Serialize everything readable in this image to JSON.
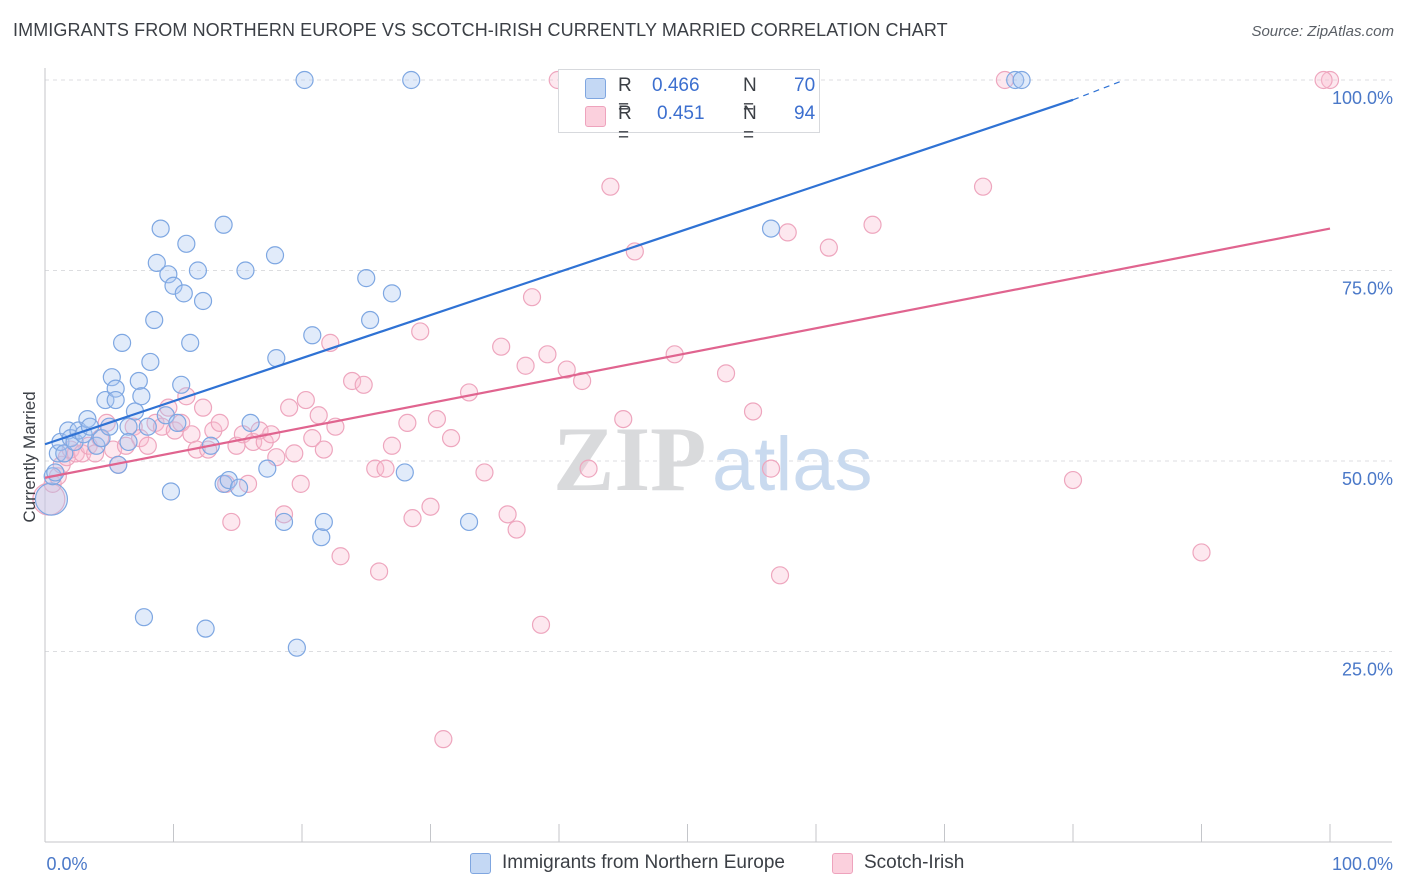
{
  "header": {
    "title": "IMMIGRANTS FROM NORTHERN EUROPE VS SCOTCH-IRISH CURRENTLY MARRIED CORRELATION CHART",
    "source": "Source: ZipAtlas.com"
  },
  "legend": {
    "r_prefix": "R =",
    "n_prefix": "N =",
    "series1": {
      "r": "0.466",
      "n": "70"
    },
    "series2": {
      "r": "0.451",
      "n": "94"
    }
  },
  "watermark": {
    "zip": "ZIP",
    "atlas": "atlas"
  },
  "chart_data": {
    "type": "scatter",
    "ylabel": "Currently Married",
    "xlim": [
      0,
      100
    ],
    "ylim": [
      0,
      100
    ],
    "x_tick_labels": [
      "0.0%",
      "100.0%"
    ],
    "y_ticks": [
      25,
      50,
      75,
      100
    ],
    "y_tick_labels": [
      "25.0%",
      "50.0%",
      "75.0%",
      "100.0%"
    ],
    "grid": "horizontal dashed",
    "legend_position": "top-center",
    "series": [
      {
        "name": "Immigrants from Northern Europe",
        "color": "#6f9fe0",
        "line_color": "#2f72d4",
        "regression": {
          "x0": 0,
          "y0": 52.2,
          "x1": 80,
          "y1": 97.4,
          "dash_to_x": 84,
          "dash_to_y": 100
        },
        "points": [
          [
            0.5,
            45
          ],
          [
            0.6,
            48
          ],
          [
            0.8,
            48.5
          ],
          [
            1,
            51
          ],
          [
            1.2,
            52.5
          ],
          [
            1.5,
            51
          ],
          [
            1.8,
            54
          ],
          [
            2,
            53
          ],
          [
            2.3,
            52.5
          ],
          [
            2.6,
            54
          ],
          [
            3,
            53.5
          ],
          [
            3.3,
            55.5
          ],
          [
            3.5,
            54.5
          ],
          [
            4,
            52
          ],
          [
            4.4,
            53
          ],
          [
            4.7,
            58
          ],
          [
            5,
            54.5
          ],
          [
            5.2,
            61
          ],
          [
            5.5,
            59.5
          ],
          [
            5.5,
            58
          ],
          [
            5.7,
            49.5
          ],
          [
            6,
            65.5
          ],
          [
            6.5,
            54.5
          ],
          [
            6.5,
            52.5
          ],
          [
            7,
            56.5
          ],
          [
            7.3,
            60.5
          ],
          [
            7.5,
            58.5
          ],
          [
            7.7,
            29.5
          ],
          [
            8,
            54.5
          ],
          [
            8.2,
            63
          ],
          [
            8.5,
            68.5
          ],
          [
            8.7,
            76
          ],
          [
            9,
            80.5
          ],
          [
            9.4,
            56
          ],
          [
            9.6,
            74.5
          ],
          [
            9.8,
            46
          ],
          [
            10,
            73
          ],
          [
            10.3,
            55
          ],
          [
            10.6,
            60
          ],
          [
            10.8,
            72
          ],
          [
            11,
            78.5
          ],
          [
            11.3,
            65.5
          ],
          [
            11.9,
            75
          ],
          [
            12.3,
            71
          ],
          [
            12.5,
            28
          ],
          [
            12.9,
            52
          ],
          [
            13.9,
            47
          ],
          [
            13.9,
            81
          ],
          [
            14.3,
            47.5
          ],
          [
            15.1,
            46.5
          ],
          [
            15.6,
            75
          ],
          [
            16,
            55
          ],
          [
            17.3,
            49
          ],
          [
            17.9,
            77
          ],
          [
            18,
            63.5
          ],
          [
            18.6,
            42
          ],
          [
            19.6,
            25.5
          ],
          [
            20.2,
            100
          ],
          [
            20.8,
            66.5
          ],
          [
            21.5,
            40
          ],
          [
            21.7,
            42
          ],
          [
            25,
            74
          ],
          [
            25.3,
            68.5
          ],
          [
            27,
            72
          ],
          [
            28,
            48.5
          ],
          [
            28.5,
            100
          ],
          [
            33,
            42
          ],
          [
            56.5,
            80.5
          ],
          [
            75.5,
            100
          ],
          [
            76,
            100
          ]
        ]
      },
      {
        "name": "Scotch-Irish",
        "color": "#f2a7c0",
        "line_color": "#e0648f",
        "regression": {
          "x0": 0,
          "y0": 47.8,
          "x1": 100,
          "y1": 80.5
        },
        "points": [
          [
            0.3,
            45
          ],
          [
            0.6,
            47
          ],
          [
            1,
            48
          ],
          [
            1.3,
            49.5
          ],
          [
            1.7,
            50.5
          ],
          [
            2,
            51.5
          ],
          [
            2.4,
            51
          ],
          [
            2.9,
            51
          ],
          [
            3.4,
            52
          ],
          [
            3.9,
            51
          ],
          [
            4.3,
            53
          ],
          [
            4.8,
            55
          ],
          [
            5.3,
            51.5
          ],
          [
            5.7,
            49.5
          ],
          [
            6.3,
            52
          ],
          [
            6.9,
            54.5
          ],
          [
            7.4,
            53
          ],
          [
            8,
            52
          ],
          [
            8.6,
            55
          ],
          [
            9.1,
            54.5
          ],
          [
            9.6,
            57
          ],
          [
            10.1,
            54
          ],
          [
            10.6,
            55
          ],
          [
            11,
            58.5
          ],
          [
            11.4,
            53.5
          ],
          [
            11.8,
            51.5
          ],
          [
            12.3,
            57
          ],
          [
            12.7,
            51.5
          ],
          [
            13.1,
            54
          ],
          [
            13.6,
            55
          ],
          [
            14.1,
            47
          ],
          [
            14.5,
            42
          ],
          [
            14.9,
            52
          ],
          [
            15.4,
            53.5
          ],
          [
            15.8,
            47
          ],
          [
            16.2,
            52.5
          ],
          [
            16.7,
            54
          ],
          [
            17.1,
            52.5
          ],
          [
            17.6,
            53.5
          ],
          [
            18,
            50.5
          ],
          [
            18.6,
            43
          ],
          [
            19,
            57
          ],
          [
            19.4,
            51
          ],
          [
            19.9,
            47
          ],
          [
            20.3,
            58
          ],
          [
            20.8,
            53
          ],
          [
            21.3,
            56
          ],
          [
            21.7,
            51.5
          ],
          [
            22.2,
            65.5
          ],
          [
            22.6,
            54.5
          ],
          [
            23,
            37.5
          ],
          [
            23.9,
            60.5
          ],
          [
            24.8,
            60
          ],
          [
            25.7,
            49
          ],
          [
            26,
            35.5
          ],
          [
            26.5,
            49
          ],
          [
            27,
            52
          ],
          [
            28.2,
            55
          ],
          [
            28.6,
            42.5
          ],
          [
            29.2,
            67
          ],
          [
            30,
            44
          ],
          [
            30.5,
            55.5
          ],
          [
            31,
            13.5
          ],
          [
            31.6,
            53
          ],
          [
            33,
            59
          ],
          [
            34.2,
            48.5
          ],
          [
            35.5,
            65
          ],
          [
            36,
            43
          ],
          [
            36.7,
            41
          ],
          [
            37.4,
            62.5
          ],
          [
            37.9,
            71.5
          ],
          [
            38.6,
            28.5
          ],
          [
            39.1,
            64
          ],
          [
            39.9,
            100
          ],
          [
            40.6,
            62
          ],
          [
            41.8,
            60.5
          ],
          [
            42.3,
            49
          ],
          [
            44,
            86
          ],
          [
            45,
            55.5
          ],
          [
            45.9,
            77.5
          ],
          [
            49,
            64
          ],
          [
            53,
            61.5
          ],
          [
            55.1,
            56.5
          ],
          [
            56.5,
            49
          ],
          [
            57.2,
            35
          ],
          [
            57.8,
            80
          ],
          [
            61,
            78
          ],
          [
            64.4,
            81
          ],
          [
            73,
            86
          ],
          [
            74.7,
            100
          ],
          [
            80,
            47.5
          ],
          [
            90,
            38
          ],
          [
            100,
            100
          ],
          [
            99.5,
            100
          ]
        ]
      }
    ]
  }
}
